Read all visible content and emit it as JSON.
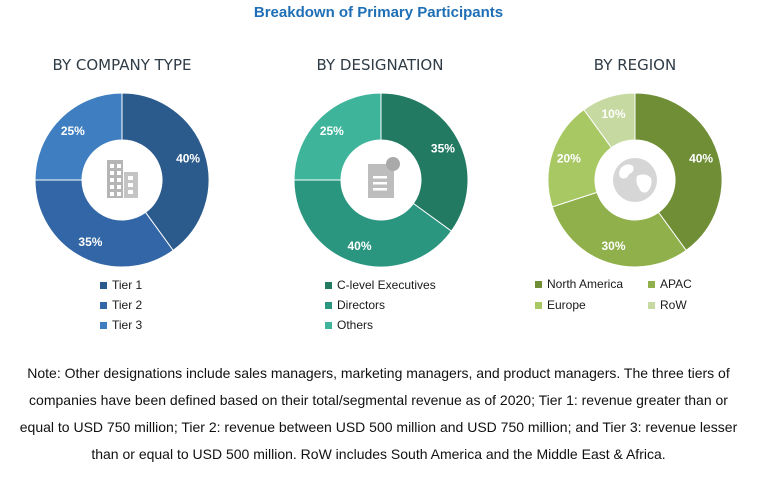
{
  "title": "Breakdown of Primary Participants",
  "chart_data": [
    {
      "type": "pie",
      "title": "BY COMPANY TYPE",
      "categories": [
        "Tier 1",
        "Tier 2",
        "Tier 3"
      ],
      "values": [
        40,
        35,
        25
      ],
      "labels": [
        "40%",
        "35%",
        "25%"
      ],
      "colors": [
        "#2b5a8c",
        "#3366a6",
        "#3f7fc1"
      ],
      "legend_placement": "bottom",
      "center_icon": "building-icon"
    },
    {
      "type": "pie",
      "title": "BY DESIGNATION",
      "categories": [
        "C-level Executives",
        "Directors",
        "Others"
      ],
      "values": [
        35,
        40,
        25
      ],
      "labels": [
        "35%",
        "40%",
        "25%"
      ],
      "colors": [
        "#237a63",
        "#2b9680",
        "#3eb49b"
      ],
      "legend_placement": "bottom",
      "center_icon": "document-icon"
    },
    {
      "type": "pie",
      "title": "BY REGION",
      "categories": [
        "North America",
        "APAC",
        "Europe",
        "RoW"
      ],
      "values": [
        40,
        30,
        20,
        10
      ],
      "labels": [
        "40%",
        "30%",
        "20%",
        "10%"
      ],
      "colors": [
        "#6f8e36",
        "#8fb04a",
        "#a8c864",
        "#c5d9a0"
      ],
      "legend_placement": "bottom",
      "center_icon": "globe-icon"
    }
  ],
  "note": "Note: Other designations include sales managers, marketing managers, and product managers. The three tiers of companies have been defined based on their total/segmental revenue as of 2020; Tier 1: revenue greater than or equal to USD 750 million; Tier 2: revenue between USD 500 million and USD 750 million; and Tier 3: revenue lesser than or equal to USD 500 million. RoW includes South America and the Middle East & Africa."
}
